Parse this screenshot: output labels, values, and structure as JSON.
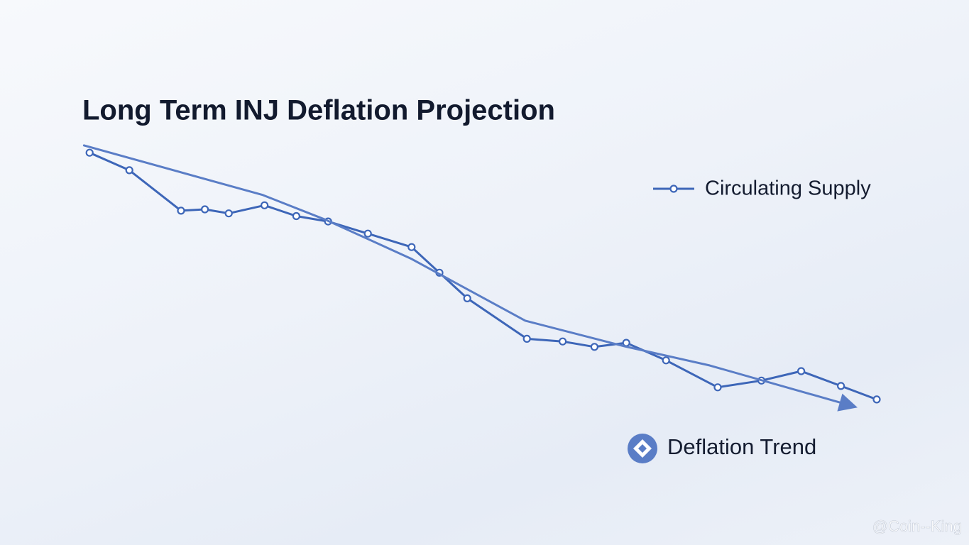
{
  "chart_data": {
    "type": "line",
    "title": "Long Term INJ Deflation Projection",
    "xlim": [
      0,
      100
    ],
    "ylim": [
      0,
      100
    ],
    "grid": false,
    "series": [
      {
        "name": "Circulating Supply",
        "color": "#3d66b8",
        "markers": true,
        "x": [
          1,
          6,
          12.5,
          15.5,
          18.5,
          23,
          27,
          31,
          36,
          41.5,
          45,
          48.5,
          56,
          60.5,
          64.5,
          68.5,
          73.5,
          80,
          85.5,
          90.5,
          95.5,
          100
        ],
        "values": [
          96,
          89.5,
          74.5,
          75,
          73.5,
          76.5,
          72.5,
          70.5,
          66,
          61,
          51.5,
          42,
          27,
          26,
          24,
          25.5,
          19,
          9,
          11.5,
          15,
          9.5,
          4.5
        ]
      },
      {
        "name": "Deflation Trend",
        "color": "#5a7dc6",
        "markers": false,
        "arrow": true,
        "x": [
          0.3,
          22.8,
          30.8,
          41.5,
          55.8,
          68.3,
          79,
          96.9
        ],
        "values": [
          98.7,
          80.3,
          71,
          56.6,
          33.7,
          24.2,
          17.1,
          2.1
        ]
      }
    ],
    "watermark": "@Coin--King"
  }
}
